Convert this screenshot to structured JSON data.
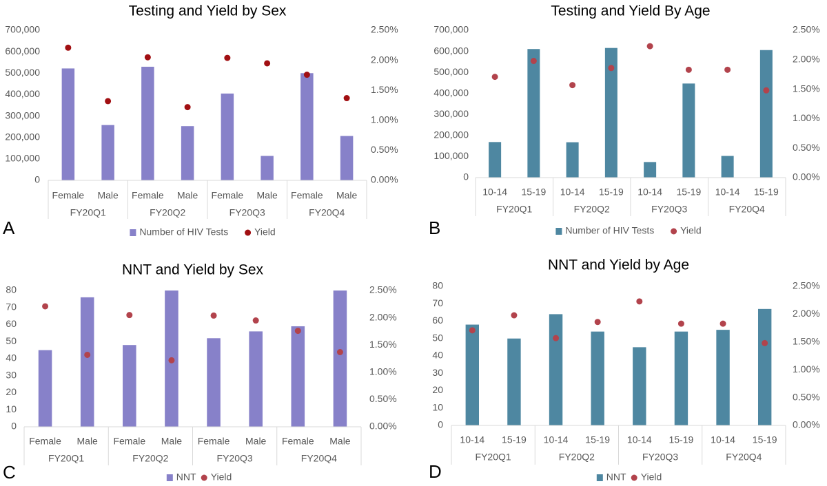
{
  "colors": {
    "purple_bar": "#8781C9",
    "teal_bar": "#4E87A1",
    "dark_red_dot": "#A10F12",
    "rose_dot": "#B2434C",
    "axis_text": "#595959",
    "gridline": "#D9D9D9"
  },
  "chart_data": [
    {
      "panel_label": "A",
      "type": "bar",
      "combo": "bar+scatter (dual axis)",
      "title": "Testing and Yield by Sex",
      "groups": [
        "FY20Q1",
        "FY20Q2",
        "FY20Q3",
        "FY20Q4"
      ],
      "sub_categories": [
        "Female",
        "Male"
      ],
      "series": [
        {
          "name": "Number of HIV Tests",
          "kind": "bar",
          "axis": "left",
          "values": [
            522000,
            258000,
            530000,
            253000,
            405000,
            114000,
            500000,
            207000
          ]
        },
        {
          "name": "Yield",
          "kind": "point",
          "axis": "right",
          "values": [
            0.0221,
            0.0132,
            0.0205,
            0.0122,
            0.0204,
            0.0195,
            0.0176,
            0.0137
          ]
        }
      ],
      "left_axis": {
        "min": 0,
        "max": 700000,
        "ticks": [
          "0",
          "100,000",
          "200,000",
          "300,000",
          "400,000",
          "500,000",
          "600,000",
          "700,000"
        ]
      },
      "right_axis": {
        "min": 0,
        "max": 0.025,
        "ticks": [
          "0.00%",
          "0.50%",
          "1.00%",
          "1.50%",
          "2.00%",
          "2.50%"
        ]
      },
      "legend": [
        "Number of HIV Tests",
        "Yield"
      ],
      "legend_position": "bottom"
    },
    {
      "panel_label": "B",
      "type": "bar",
      "combo": "bar+scatter (dual axis)",
      "title": "Testing and Yield By Age",
      "groups": [
        "FY20Q1",
        "FY20Q2",
        "FY20Q3",
        "FY20Q4"
      ],
      "sub_categories": [
        "10-14",
        "15-19"
      ],
      "series": [
        {
          "name": "Number of HIV Tests",
          "kind": "bar",
          "axis": "left",
          "values": [
            169000,
            611000,
            168000,
            616000,
            74000,
            447000,
            103000,
            606000
          ]
        },
        {
          "name": "Yield",
          "kind": "point",
          "axis": "right",
          "values": [
            0.0171,
            0.0198,
            0.0157,
            0.0186,
            0.0223,
            0.0183,
            0.0183,
            0.0148
          ]
        }
      ],
      "left_axis": {
        "min": 0,
        "max": 700000,
        "ticks": [
          "0",
          "100,000",
          "200,000",
          "300,000",
          "400,000",
          "500,000",
          "600,000",
          "700,000"
        ]
      },
      "right_axis": {
        "min": 0,
        "max": 0.025,
        "ticks": [
          "0.00%",
          "0.50%",
          "1.00%",
          "1.50%",
          "2.00%",
          "2.50%"
        ]
      },
      "legend": [
        "Number of HIV Tests",
        "Yield"
      ],
      "legend_position": "bottom"
    },
    {
      "panel_label": "C",
      "type": "bar",
      "combo": "bar+scatter (dual axis)",
      "title": "NNT and Yield by Sex",
      "groups": [
        "FY20Q1",
        "FY20Q2",
        "FY20Q3",
        "FY20Q4"
      ],
      "sub_categories": [
        "Female",
        "Male"
      ],
      "series": [
        {
          "name": "NNT",
          "kind": "bar",
          "axis": "left",
          "values": [
            45,
            76,
            48,
            80,
            52,
            56,
            59,
            80
          ]
        },
        {
          "name": "Yield",
          "kind": "point",
          "axis": "right",
          "values": [
            0.0221,
            0.0132,
            0.0205,
            0.0122,
            0.0204,
            0.0195,
            0.0176,
            0.0137
          ]
        }
      ],
      "left_axis": {
        "min": 0,
        "max": 80,
        "ticks": [
          "0",
          "10",
          "20",
          "30",
          "40",
          "50",
          "60",
          "70",
          "80"
        ]
      },
      "right_axis": {
        "min": 0,
        "max": 0.025,
        "ticks": [
          "0.00%",
          "0.50%",
          "1.00%",
          "1.50%",
          "2.00%",
          "2.50%"
        ]
      },
      "legend": [
        "NNT",
        "Yield"
      ],
      "legend_position": "bottom"
    },
    {
      "panel_label": "D",
      "type": "bar",
      "combo": "bar+scatter (dual axis)",
      "title": "NNT and Yield by Age",
      "groups": [
        "FY20Q1",
        "FY20Q2",
        "FY20Q3",
        "FY20Q4"
      ],
      "sub_categories": [
        "10-14",
        "15-19"
      ],
      "series": [
        {
          "name": "NNT",
          "kind": "bar",
          "axis": "left",
          "values": [
            58,
            50,
            64,
            54,
            45,
            54,
            55,
            67
          ]
        },
        {
          "name": "Yield",
          "kind": "point",
          "axis": "right",
          "values": [
            0.0171,
            0.0198,
            0.0157,
            0.0186,
            0.0223,
            0.0183,
            0.0183,
            0.0148
          ]
        }
      ],
      "left_axis": {
        "min": 0,
        "max": 80,
        "ticks": [
          "0",
          "10",
          "20",
          "30",
          "40",
          "50",
          "60",
          "70",
          "80"
        ]
      },
      "right_axis": {
        "min": 0,
        "max": 0.025,
        "ticks": [
          "0.00%",
          "0.50%",
          "1.00%",
          "1.50%",
          "2.00%",
          "2.50%"
        ]
      },
      "legend": [
        "NNT",
        "Yield"
      ],
      "legend_position": "bottom"
    }
  ]
}
